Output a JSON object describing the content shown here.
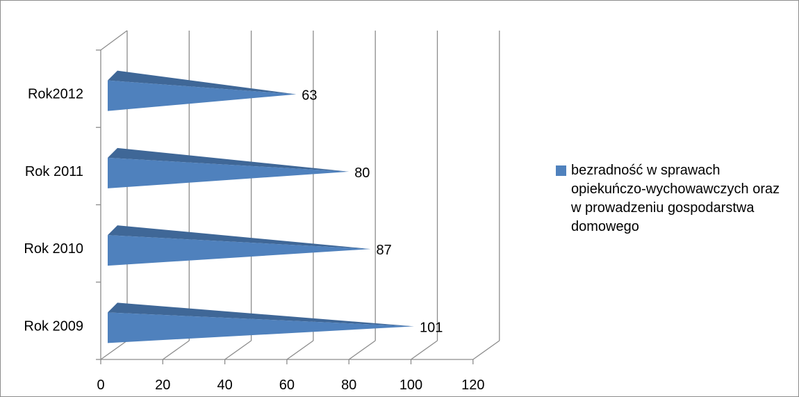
{
  "chart_data": {
    "type": "bar",
    "orientation": "horizontal",
    "style": "3d-pyramid",
    "categories": [
      "Rok 2009",
      "Rok 2010",
      "Rok 2011",
      "Rok2012"
    ],
    "series": [
      {
        "name": "bezradność  w sprawach opiekuńczo-wychowawczych oraz w prowadzeniu gospodarstwa domowego",
        "values": [
          101,
          87,
          80,
          63
        ],
        "color": "#4f81bd"
      }
    ],
    "data_labels": [
      "101",
      "87",
      "80",
      "63"
    ],
    "x_ticks": [
      "0",
      "20",
      "40",
      "60",
      "80",
      "100",
      "120"
    ],
    "xlim": [
      0,
      120
    ],
    "title": "",
    "xlabel": "",
    "ylabel": "",
    "grid": true,
    "legend_position": "right"
  }
}
